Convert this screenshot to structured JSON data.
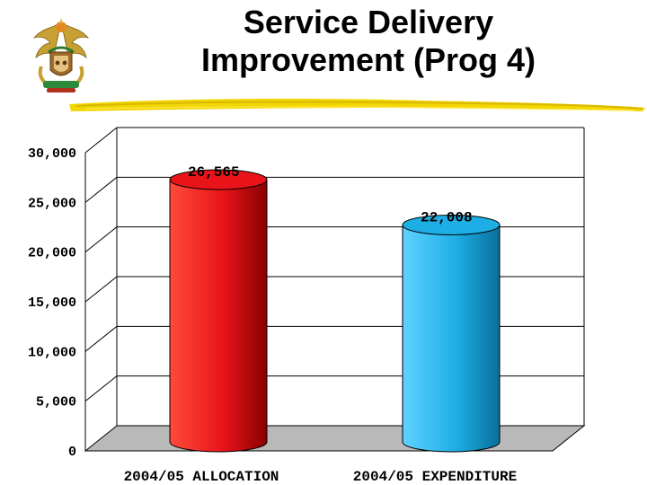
{
  "page": {
    "title_line1": "Service Delivery",
    "title_line2": "Improvement (Prog 4)"
  },
  "logo": {
    "icon": "coat-of-arms-icon"
  },
  "chart_data": {
    "type": "bar",
    "style": "3d-cylinder",
    "title": "Service Delivery Improvement (Prog 4)",
    "categories": [
      "2004/05 ALLOCATION",
      "2004/05 EXPENDITURE"
    ],
    "values": [
      26565,
      22008
    ],
    "value_labels": [
      "26,565",
      "22,008"
    ],
    "colors": [
      "#e8141a",
      "#1eaee6"
    ],
    "yticks": [
      0,
      5000,
      10000,
      15000,
      20000,
      25000,
      30000
    ],
    "ytick_labels": [
      "0",
      "5,000",
      "10,000",
      "15,000",
      "20,000",
      "25,000",
      "30,000"
    ],
    "ylim": [
      0,
      30000
    ],
    "grid": true,
    "xlabel": "",
    "ylabel": ""
  }
}
